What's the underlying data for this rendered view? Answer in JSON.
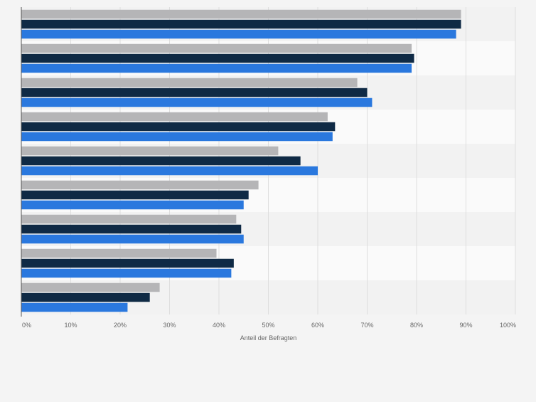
{
  "chart_data": {
    "type": "bar",
    "orientation": "horizontal",
    "categories": [
      "",
      "",
      "",
      "",
      "",
      "",
      "",
      "",
      ""
    ],
    "series": [
      {
        "color": "#b5b5b7",
        "values": [
          89,
          79,
          68,
          62,
          52,
          48,
          43.5,
          39.5,
          28
        ]
      },
      {
        "color": "#0f2a45",
        "values": [
          89,
          79.5,
          70,
          63.5,
          56.5,
          46,
          44.5,
          43,
          26
        ]
      },
      {
        "color": "#2a78de",
        "values": [
          88,
          79,
          71,
          63,
          60,
          45,
          45,
          42.5,
          21.5
        ]
      }
    ],
    "xlabel": "Anteil der Befragten",
    "ylabel": "",
    "xlim": [
      0,
      100
    ],
    "x_ticks": [
      "0%",
      "10%",
      "20%",
      "30%",
      "40%",
      "50%",
      "60%",
      "70%",
      "80%",
      "90%",
      "100%"
    ],
    "grid": true,
    "legend": "none"
  }
}
